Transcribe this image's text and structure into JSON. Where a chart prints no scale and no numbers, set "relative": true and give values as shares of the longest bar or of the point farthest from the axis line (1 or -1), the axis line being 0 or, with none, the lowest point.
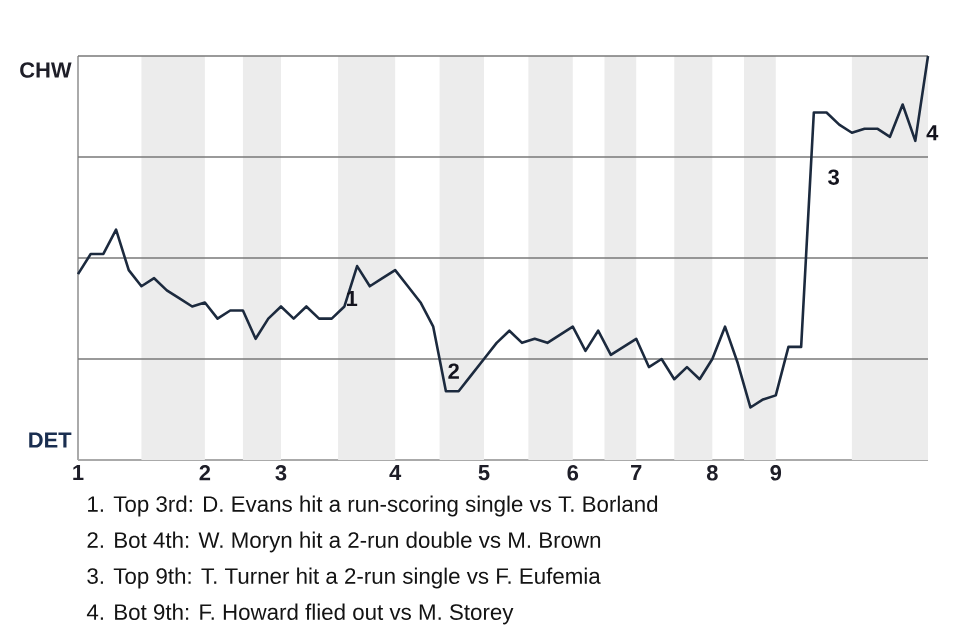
{
  "chart_data": {
    "type": "line",
    "categories": [
      "1",
      null,
      null,
      null,
      null,
      null,
      null,
      null,
      null,
      null,
      "2",
      null,
      null,
      null,
      null,
      null,
      "3",
      null,
      null,
      null,
      null,
      null,
      null,
      null,
      null,
      "4",
      null,
      null,
      null,
      null,
      null,
      null,
      "5",
      null,
      null,
      null,
      null,
      null,
      null,
      "6",
      null,
      null,
      null,
      null,
      "7",
      null,
      null,
      null,
      null,
      null,
      "8",
      null,
      null,
      null,
      null,
      "9",
      null,
      null,
      null,
      null,
      null,
      null,
      null,
      null,
      null,
      null,
      null,
      null
    ],
    "relative": true,
    "series": [
      {
        "color": "#1c2a3e",
        "values": [
          0.46,
          0.51,
          0.51,
          0.57,
          0.47,
          0.43,
          0.45,
          0.42,
          0.4,
          0.38,
          0.39,
          0.35,
          0.37,
          0.37,
          0.3,
          0.35,
          0.38,
          0.35,
          0.38,
          0.35,
          0.35,
          0.38,
          0.48,
          0.43,
          0.45,
          0.47,
          0.43,
          0.39,
          0.33,
          0.17,
          0.17,
          0.21,
          0.25,
          0.29,
          0.32,
          0.29,
          0.3,
          0.29,
          0.31,
          0.33,
          0.27,
          0.32,
          0.26,
          0.28,
          0.3,
          0.23,
          0.25,
          0.2,
          0.23,
          0.2,
          0.25,
          0.33,
          0.24,
          0.13,
          0.15,
          0.16,
          0.28,
          0.28,
          0.86,
          0.86,
          0.83,
          0.81,
          0.82,
          0.82,
          0.8,
          0.88,
          0.79,
          1
        ]
      }
    ],
    "grid": "y",
    "annotations": [
      "1",
      "2",
      "3",
      "4",
      "CHW",
      "DET",
      "1. Top 3rd: D. Evans hit a run-scoring single vs T. Borland",
      "2. Bot 4th: W. Moryn hit a 2-run double vs M. Brown",
      "3. Top 9th: T. Turner hit a 2-run single vs F. Eufemia",
      "4. Bot 9th: F. Howard flied out vs M. Storey"
    ]
  }
}
